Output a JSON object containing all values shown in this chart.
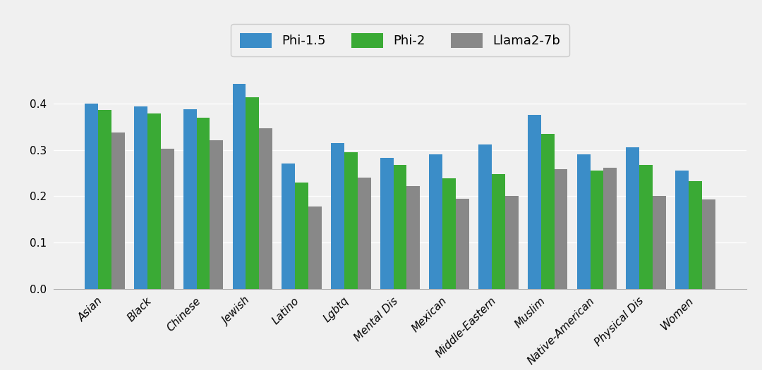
{
  "categories": [
    "Asian",
    "Black",
    "Chinese",
    "Jewish",
    "Latino",
    "Lgbtq",
    "Mental Dis",
    "Mexican",
    "Middle-Eastern",
    "Muslim",
    "Native-American",
    "Physical Dis",
    "Women"
  ],
  "phi15": [
    0.4,
    0.394,
    0.388,
    0.443,
    0.27,
    0.315,
    0.283,
    0.291,
    0.312,
    0.375,
    0.29,
    0.305,
    0.256
  ],
  "phi2": [
    0.386,
    0.378,
    0.37,
    0.413,
    0.229,
    0.295,
    0.267,
    0.238,
    0.247,
    0.335,
    0.255,
    0.267,
    0.232
  ],
  "llama": [
    0.337,
    0.302,
    0.321,
    0.347,
    0.178,
    0.24,
    0.222,
    0.194,
    0.2,
    0.258,
    0.261,
    0.201,
    0.193
  ],
  "colors": [
    "#3b8dc8",
    "#3aaa35",
    "#888888"
  ],
  "legend_labels": [
    "Phi-1.5",
    "Phi-2",
    "Llama2-7b"
  ],
  "ylim": [
    0.0,
    0.48
  ],
  "yticks": [
    0.0,
    0.1,
    0.2,
    0.3,
    0.4
  ],
  "background_color": "#f0f0f0",
  "grid_color": "#ffffff",
  "bar_width": 0.27,
  "tick_fontsize": 11,
  "legend_fontsize": 13
}
